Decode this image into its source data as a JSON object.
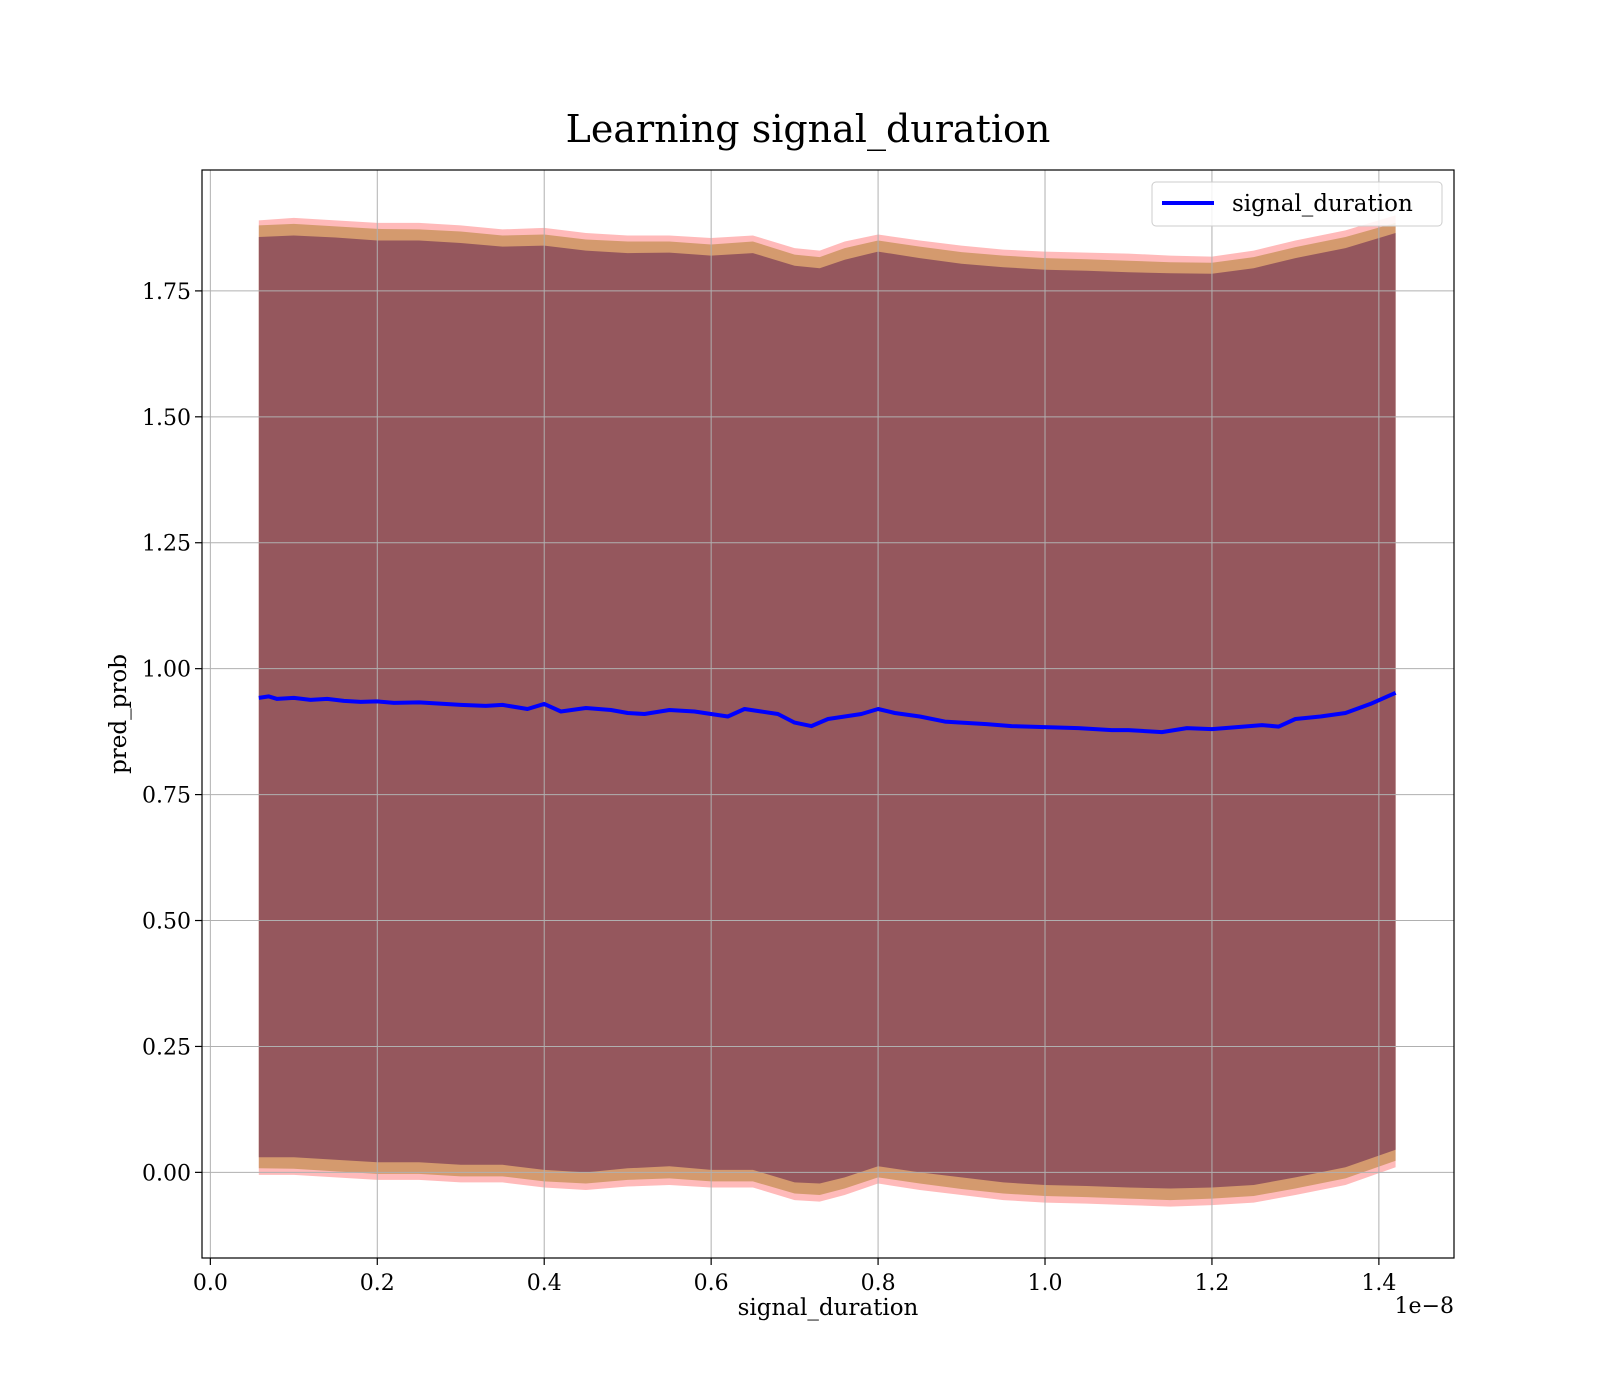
{
  "chart_data": {
    "type": "line",
    "title": "Learning signal_duration",
    "xlabel": "signal_duration",
    "ylabel": "pred_prob",
    "x_offset_label": "1e−8",
    "xlim": [
      -0.01,
      1.49
    ],
    "ylim": [
      -0.17,
      1.99
    ],
    "x_ticks": [
      0.0,
      0.2,
      0.4,
      0.6,
      0.8,
      1.0,
      1.2,
      1.4
    ],
    "x_tick_labels": [
      "0.0",
      "0.2",
      "0.4",
      "0.6",
      "0.8",
      "1.0",
      "1.2",
      "1.4"
    ],
    "y_ticks": [
      0.0,
      0.25,
      0.5,
      0.75,
      1.0,
      1.25,
      1.5,
      1.75
    ],
    "y_tick_labels": [
      "0.00",
      "0.25",
      "0.50",
      "0.75",
      "1.00",
      "1.25",
      "1.50",
      "1.75"
    ],
    "grid": true,
    "legend_position": "top-right",
    "series": [
      {
        "name": "signal_duration",
        "color": "#0000ff",
        "x": [
          0.058,
          0.07,
          0.08,
          0.1,
          0.12,
          0.14,
          0.16,
          0.18,
          0.2,
          0.22,
          0.25,
          0.28,
          0.3,
          0.33,
          0.35,
          0.38,
          0.4,
          0.42,
          0.45,
          0.48,
          0.5,
          0.52,
          0.55,
          0.58,
          0.6,
          0.62,
          0.64,
          0.66,
          0.68,
          0.7,
          0.72,
          0.74,
          0.76,
          0.78,
          0.8,
          0.82,
          0.85,
          0.88,
          0.9,
          0.93,
          0.96,
          1.0,
          1.04,
          1.08,
          1.1,
          1.14,
          1.17,
          1.2,
          1.23,
          1.26,
          1.28,
          1.3,
          1.33,
          1.36,
          1.39,
          1.42
        ],
        "y": [
          0.942,
          0.945,
          0.94,
          0.942,
          0.938,
          0.94,
          0.936,
          0.934,
          0.935,
          0.932,
          0.933,
          0.93,
          0.928,
          0.926,
          0.928,
          0.92,
          0.93,
          0.915,
          0.922,
          0.918,
          0.912,
          0.91,
          0.918,
          0.915,
          0.91,
          0.905,
          0.92,
          0.915,
          0.91,
          0.893,
          0.886,
          0.9,
          0.905,
          0.91,
          0.92,
          0.912,
          0.905,
          0.895,
          0.893,
          0.89,
          0.886,
          0.884,
          0.882,
          0.878,
          0.878,
          0.874,
          0.882,
          0.88,
          0.884,
          0.888,
          0.885,
          0.9,
          0.905,
          0.912,
          0.93,
          0.952
        ]
      }
    ],
    "bands": [
      {
        "color": "#ff6666",
        "opacity": 0.45,
        "x": [
          0.058,
          0.1,
          0.15,
          0.2,
          0.25,
          0.3,
          0.35,
          0.4,
          0.45,
          0.5,
          0.55,
          0.6,
          0.65,
          0.7,
          0.73,
          0.76,
          0.8,
          0.85,
          0.9,
          0.95,
          1.0,
          1.05,
          1.1,
          1.15,
          1.2,
          1.25,
          1.3,
          1.36,
          1.42
        ],
        "upper": [
          1.89,
          1.895,
          1.89,
          1.885,
          1.885,
          1.88,
          1.872,
          1.875,
          1.865,
          1.86,
          1.86,
          1.855,
          1.86,
          1.835,
          1.83,
          1.848,
          1.862,
          1.85,
          1.84,
          1.832,
          1.828,
          1.826,
          1.824,
          1.82,
          1.818,
          1.83,
          1.85,
          1.87,
          1.9
        ],
        "lower": [
          -0.005,
          -0.005,
          -0.01,
          -0.015,
          -0.015,
          -0.02,
          -0.02,
          -0.03,
          -0.035,
          -0.028,
          -0.025,
          -0.03,
          -0.03,
          -0.055,
          -0.058,
          -0.045,
          -0.022,
          -0.035,
          -0.045,
          -0.055,
          -0.06,
          -0.062,
          -0.065,
          -0.068,
          -0.065,
          -0.06,
          -0.045,
          -0.025,
          0.01
        ]
      },
      {
        "color": "#b08030",
        "opacity": 0.55,
        "x": [
          0.058,
          0.1,
          0.15,
          0.2,
          0.25,
          0.3,
          0.35,
          0.4,
          0.45,
          0.5,
          0.55,
          0.6,
          0.65,
          0.7,
          0.73,
          0.76,
          0.8,
          0.85,
          0.9,
          0.95,
          1.0,
          1.05,
          1.1,
          1.15,
          1.2,
          1.25,
          1.3,
          1.36,
          1.42
        ],
        "upper": [
          1.88,
          1.883,
          1.878,
          1.873,
          1.872,
          1.868,
          1.86,
          1.862,
          1.852,
          1.848,
          1.848,
          1.842,
          1.848,
          1.822,
          1.817,
          1.835,
          1.85,
          1.838,
          1.827,
          1.82,
          1.815,
          1.813,
          1.81,
          1.807,
          1.806,
          1.817,
          1.837,
          1.857,
          1.885
        ],
        "lower": [
          0.008,
          0.007,
          0.002,
          -0.003,
          -0.003,
          -0.008,
          -0.008,
          -0.018,
          -0.022,
          -0.015,
          -0.012,
          -0.018,
          -0.018,
          -0.042,
          -0.045,
          -0.032,
          -0.01,
          -0.022,
          -0.033,
          -0.042,
          -0.047,
          -0.049,
          -0.052,
          -0.055,
          -0.052,
          -0.047,
          -0.032,
          -0.012,
          0.023
        ]
      },
      {
        "color": "#7a3a55",
        "opacity": 0.7,
        "x": [
          0.058,
          0.1,
          0.15,
          0.2,
          0.25,
          0.3,
          0.35,
          0.4,
          0.45,
          0.5,
          0.55,
          0.6,
          0.65,
          0.7,
          0.73,
          0.76,
          0.8,
          0.85,
          0.9,
          0.95,
          1.0,
          1.05,
          1.1,
          1.15,
          1.2,
          1.25,
          1.3,
          1.36,
          1.42
        ],
        "upper": [
          1.857,
          1.86,
          1.856,
          1.85,
          1.85,
          1.845,
          1.838,
          1.84,
          1.83,
          1.825,
          1.826,
          1.82,
          1.825,
          1.8,
          1.795,
          1.812,
          1.828,
          1.815,
          1.804,
          1.797,
          1.792,
          1.79,
          1.787,
          1.785,
          1.784,
          1.795,
          1.815,
          1.835,
          1.865
        ],
        "lower": [
          0.03,
          0.03,
          0.025,
          0.02,
          0.02,
          0.015,
          0.015,
          0.005,
          0.0,
          0.008,
          0.012,
          0.005,
          0.005,
          -0.02,
          -0.022,
          -0.01,
          0.012,
          0.0,
          -0.01,
          -0.02,
          -0.025,
          -0.027,
          -0.03,
          -0.032,
          -0.03,
          -0.025,
          -0.01,
          0.01,
          0.045
        ]
      }
    ]
  }
}
